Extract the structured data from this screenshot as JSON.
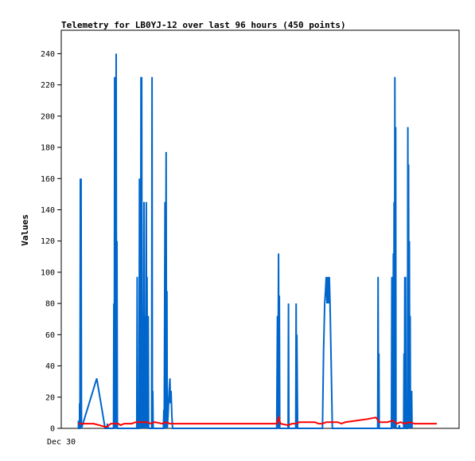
{
  "chart_data": {
    "type": "line",
    "title": "Telemetry for LB0YJ-12 over last 96 hours (450 points)",
    "xlabel": "",
    "ylabel": "Values",
    "x_tick_labels": [
      "Dec 30"
    ],
    "y_ticks": [
      0,
      20,
      40,
      60,
      80,
      100,
      120,
      140,
      160,
      180,
      200,
      220,
      240
    ],
    "ylim": [
      0,
      255
    ],
    "xlim": [
      0,
      96
    ],
    "grid": false,
    "legend": "none",
    "series": [
      {
        "color": "#0066cc",
        "points": [
          [
            2.0,
            0
          ],
          [
            2.0,
            5
          ],
          [
            2.1,
            0
          ],
          [
            2.3,
            0
          ],
          [
            2.3,
            16
          ],
          [
            2.4,
            0
          ],
          [
            2.5,
            160
          ],
          [
            2.6,
            0
          ],
          [
            2.7,
            160
          ],
          [
            2.8,
            0
          ],
          [
            6.8,
            32
          ],
          [
            9.0,
            0
          ],
          [
            9.5,
            0
          ],
          [
            9.6,
            3
          ],
          [
            9.8,
            0
          ],
          [
            11.2,
            0
          ],
          [
            11.3,
            80
          ],
          [
            11.4,
            0
          ],
          [
            11.5,
            225
          ],
          [
            11.6,
            0
          ],
          [
            11.7,
            112
          ],
          [
            11.8,
            0
          ],
          [
            11.9,
            240
          ],
          [
            12.0,
            0
          ],
          [
            12.1,
            120
          ],
          [
            12.2,
            0
          ],
          [
            17.3,
            0
          ],
          [
            17.4,
            97
          ],
          [
            17.5,
            0
          ],
          [
            17.9,
            0
          ],
          [
            18.0,
            160
          ],
          [
            18.1,
            0
          ],
          [
            18.2,
            80
          ],
          [
            18.3,
            0
          ],
          [
            18.4,
            225
          ],
          [
            18.5,
            0
          ],
          [
            18.6,
            225
          ],
          [
            18.7,
            0
          ],
          [
            18.9,
            72
          ],
          [
            19.0,
            0
          ],
          [
            19.2,
            145
          ],
          [
            19.3,
            0
          ],
          [
            19.5,
            72
          ],
          [
            19.6,
            0
          ],
          [
            19.8,
            145
          ],
          [
            19.9,
            0
          ],
          [
            20.0,
            97
          ],
          [
            20.1,
            0
          ],
          [
            20.3,
            72
          ],
          [
            20.4,
            0
          ],
          [
            21.2,
            0
          ],
          [
            21.3,
            225
          ],
          [
            21.4,
            0
          ],
          [
            21.5,
            24
          ],
          [
            21.6,
            0
          ],
          [
            24.3,
            0
          ],
          [
            24.4,
            12
          ],
          [
            24.5,
            0
          ],
          [
            24.7,
            145
          ],
          [
            24.8,
            0
          ],
          [
            25.0,
            177
          ],
          [
            25.1,
            0
          ],
          [
            25.2,
            88
          ],
          [
            25.3,
            0
          ],
          [
            25.5,
            8
          ],
          [
            25.8,
            24
          ],
          [
            26.0,
            32
          ],
          [
            26.1,
            16
          ],
          [
            26.3,
            24
          ],
          [
            26.5,
            8
          ],
          [
            26.7,
            0
          ],
          [
            54.0,
            0
          ],
          [
            54.2,
            72
          ],
          [
            54.3,
            0
          ],
          [
            54.5,
            112
          ],
          [
            54.6,
            0
          ],
          [
            54.7,
            85
          ],
          [
            54.8,
            0
          ],
          [
            57.0,
            0
          ],
          [
            57.1,
            80
          ],
          [
            57.2,
            0
          ],
          [
            59.0,
            0
          ],
          [
            59.1,
            80
          ],
          [
            59.2,
            0
          ],
          [
            59.3,
            60
          ],
          [
            59.5,
            0
          ],
          [
            66.0,
            0
          ],
          [
            66.3,
            50
          ],
          [
            66.6,
            80
          ],
          [
            66.8,
            88
          ],
          [
            67.0,
            97
          ],
          [
            67.2,
            80
          ],
          [
            67.4,
            97
          ],
          [
            67.6,
            80
          ],
          [
            67.8,
            97
          ],
          [
            68.0,
            80
          ],
          [
            68.3,
            40
          ],
          [
            68.6,
            0
          ],
          [
            80.5,
            0
          ],
          [
            80.6,
            97
          ],
          [
            80.7,
            0
          ],
          [
            80.8,
            48
          ],
          [
            80.9,
            0
          ],
          [
            84.1,
            0
          ],
          [
            84.2,
            97
          ],
          [
            84.3,
            0
          ],
          [
            84.4,
            72
          ],
          [
            84.5,
            0
          ],
          [
            84.6,
            112
          ],
          [
            84.7,
            0
          ],
          [
            84.8,
            145
          ],
          [
            84.9,
            0
          ],
          [
            85.0,
            225
          ],
          [
            85.1,
            0
          ],
          [
            85.2,
            193
          ],
          [
            85.3,
            0
          ],
          [
            86.0,
            0
          ],
          [
            86.2,
            2
          ],
          [
            86.3,
            0
          ],
          [
            87.3,
            0
          ],
          [
            87.4,
            48
          ],
          [
            87.5,
            0
          ],
          [
            87.6,
            97
          ],
          [
            87.7,
            0
          ],
          [
            87.8,
            97
          ],
          [
            87.9,
            0
          ],
          [
            88.3,
            0
          ],
          [
            88.4,
            193
          ],
          [
            88.5,
            0
          ],
          [
            88.6,
            169
          ],
          [
            88.7,
            0
          ],
          [
            88.8,
            120
          ],
          [
            88.9,
            0
          ],
          [
            89.0,
            72
          ],
          [
            89.1,
            0
          ],
          [
            89.4,
            24
          ],
          [
            89.5,
            0
          ]
        ]
      },
      {
        "color": "#ff0000",
        "points": [
          [
            2.0,
            3
          ],
          [
            6.0,
            3
          ],
          [
            9.0,
            1
          ],
          [
            9.5,
            1
          ],
          [
            10.5,
            3
          ],
          [
            11.5,
            3
          ],
          [
            12.5,
            3
          ],
          [
            13.0,
            2
          ],
          [
            14.0,
            3
          ],
          [
            16.0,
            3
          ],
          [
            17.0,
            4
          ],
          [
            20.0,
            4
          ],
          [
            21.0,
            3
          ],
          [
            22.0,
            4
          ],
          [
            24.0,
            3
          ],
          [
            25.0,
            4
          ],
          [
            26.0,
            3
          ],
          [
            28.0,
            3
          ],
          [
            30.0,
            3
          ],
          [
            40.0,
            3
          ],
          [
            50.0,
            3
          ],
          [
            53.0,
            3
          ],
          [
            54.0,
            3
          ],
          [
            54.5,
            7
          ],
          [
            55.0,
            3
          ],
          [
            57.0,
            2
          ],
          [
            58.0,
            3
          ],
          [
            59.0,
            3
          ],
          [
            60.0,
            4
          ],
          [
            64.0,
            4
          ],
          [
            65.0,
            3
          ],
          [
            66.0,
            3
          ],
          [
            67.0,
            4
          ],
          [
            70.0,
            4
          ],
          [
            71.0,
            3
          ],
          [
            72.0,
            4
          ],
          [
            75.0,
            5
          ],
          [
            78.0,
            6
          ],
          [
            80.0,
            7
          ],
          [
            81.0,
            4
          ],
          [
            83.0,
            4
          ],
          [
            84.5,
            5
          ],
          [
            85.5,
            3
          ],
          [
            86.5,
            4
          ],
          [
            87.5,
            3
          ],
          [
            89.0,
            4
          ],
          [
            90.0,
            3
          ],
          [
            96.0,
            3
          ]
        ]
      }
    ]
  }
}
